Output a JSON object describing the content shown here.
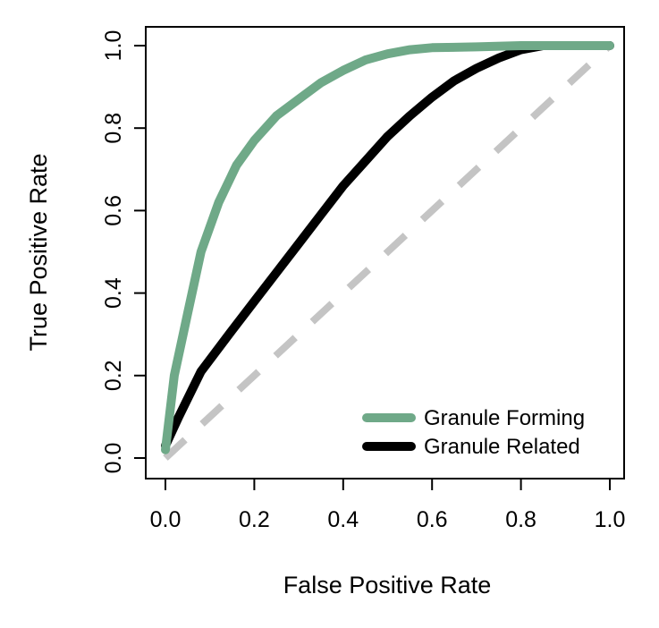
{
  "chart_data": {
    "type": "line",
    "title": "",
    "xlabel": "False Positive Rate",
    "ylabel": "True Positive Rate",
    "xlim": [
      0,
      1
    ],
    "ylim": [
      0,
      1
    ],
    "x_ticks": [
      "0.0",
      "0.2",
      "0.4",
      "0.6",
      "0.8",
      "1.0"
    ],
    "y_ticks": [
      "0.0",
      "0.2",
      "0.4",
      "0.6",
      "0.8",
      "1.0"
    ],
    "grid": false,
    "legend_position": "bottom-right",
    "series": [
      {
        "name": "Granule Forming",
        "color": "#6fa988",
        "style": "solid",
        "points": [
          [
            0,
            0.02
          ],
          [
            0.02,
            0.2
          ],
          [
            0.05,
            0.35
          ],
          [
            0.08,
            0.5
          ],
          [
            0.12,
            0.62
          ],
          [
            0.16,
            0.71
          ],
          [
            0.2,
            0.77
          ],
          [
            0.25,
            0.83
          ],
          [
            0.3,
            0.87
          ],
          [
            0.35,
            0.91
          ],
          [
            0.4,
            0.94
          ],
          [
            0.45,
            0.965
          ],
          [
            0.5,
            0.98
          ],
          [
            0.55,
            0.99
          ],
          [
            0.6,
            0.995
          ],
          [
            0.7,
            0.997
          ],
          [
            0.8,
            1.0
          ],
          [
            0.9,
            1.0
          ],
          [
            1.0,
            1.0
          ]
        ]
      },
      {
        "name": "Granule Related",
        "color": "#000000",
        "style": "solid",
        "points": [
          [
            0,
            0.03
          ],
          [
            0.03,
            0.1
          ],
          [
            0.08,
            0.21
          ],
          [
            0.15,
            0.31
          ],
          [
            0.2,
            0.38
          ],
          [
            0.25,
            0.45
          ],
          [
            0.3,
            0.52
          ],
          [
            0.35,
            0.59
          ],
          [
            0.4,
            0.66
          ],
          [
            0.45,
            0.72
          ],
          [
            0.5,
            0.78
          ],
          [
            0.55,
            0.83
          ],
          [
            0.6,
            0.875
          ],
          [
            0.65,
            0.915
          ],
          [
            0.7,
            0.945
          ],
          [
            0.75,
            0.97
          ],
          [
            0.8,
            0.99
          ],
          [
            0.85,
            1.0
          ],
          [
            0.9,
            1.0
          ],
          [
            1.0,
            1.0
          ]
        ]
      },
      {
        "color": "#c4c4c4",
        "style": "dashed",
        "points": [
          [
            0,
            0
          ],
          [
            1,
            1
          ]
        ]
      }
    ]
  }
}
